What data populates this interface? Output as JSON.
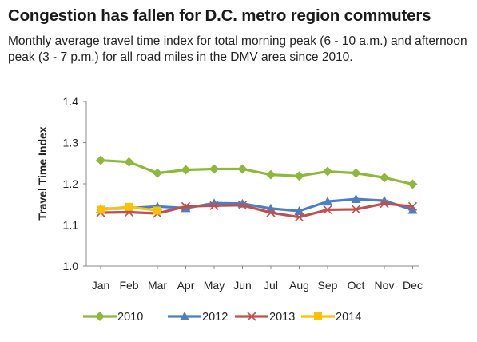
{
  "header": {
    "title": "Congestion has fallen for D.C. metro region commuters",
    "subtitle": "Monthly average travel time index for total morning peak (6 - 10 a.m.) and afternoon peak (3 - 7 p.m.) for all road miles in the DMV area since 2010."
  },
  "chart_data": {
    "type": "line",
    "title": "",
    "xlabel": "",
    "ylabel": "Travel Time Index",
    "categories": [
      "Jan",
      "Feb",
      "Mar",
      "Apr",
      "May",
      "Jun",
      "Jul",
      "Aug",
      "Sep",
      "Oct",
      "Nov",
      "Dec"
    ],
    "ylim": [
      1.0,
      1.4
    ],
    "yticks": [
      "1.0",
      "1.1",
      "1.2",
      "1.3",
      "1.4"
    ],
    "grid": false,
    "legend": "bottom",
    "series": [
      {
        "name": "2010",
        "color": "#8db83c",
        "marker": "diamond",
        "values": [
          1.257,
          1.253,
          1.226,
          1.234,
          1.236,
          1.236,
          1.222,
          1.219,
          1.23,
          1.226,
          1.215,
          1.199
        ]
      },
      {
        "name": "2012",
        "color": "#4b7fc4",
        "marker": "triangle",
        "values": [
          1.139,
          1.141,
          1.145,
          1.141,
          1.153,
          1.152,
          1.14,
          1.134,
          1.157,
          1.163,
          1.159,
          1.137
        ]
      },
      {
        "name": "2013",
        "color": "#c0504d",
        "marker": "x",
        "values": [
          1.13,
          1.131,
          1.128,
          1.145,
          1.147,
          1.148,
          1.13,
          1.119,
          1.137,
          1.138,
          1.152,
          1.145
        ]
      },
      {
        "name": "2014",
        "color": "#ffc000",
        "marker": "square",
        "values": [
          1.137,
          1.144,
          1.135,
          null,
          null,
          null,
          null,
          null,
          null,
          null,
          null,
          null
        ]
      }
    ]
  }
}
